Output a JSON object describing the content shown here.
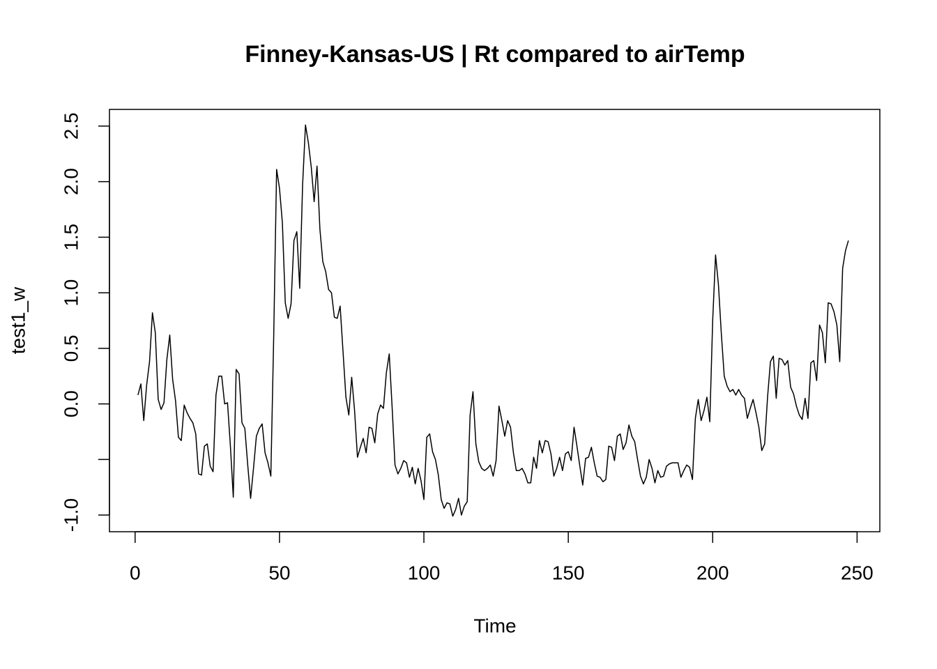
{
  "chart_data": {
    "type": "line",
    "title": "Finney-Kansas-US | Rt compared to airTemp",
    "x_label": "Time",
    "y_label": "test1_w",
    "xlim": [
      -8.88,
      257.88
    ],
    "ylim": [
      -1.15,
      2.65
    ],
    "xticks": [
      0,
      50,
      100,
      150,
      200,
      250
    ],
    "yticks": [
      {
        "value": -1.0,
        "label": "-1.0"
      },
      {
        "value": -0.5,
        "label": null
      },
      {
        "value": 0.0,
        "label": "0.0"
      },
      0.5,
      {
        "value": 1.0,
        "label": "1.0"
      },
      1.5,
      {
        "value": 2.0,
        "label": "2.0"
      },
      2.5
    ],
    "grid": false,
    "series": [
      {
        "name": "test1_w",
        "color": "#000000",
        "x": [
          1,
          2,
          3,
          4,
          5,
          6,
          7,
          8,
          9,
          10,
          11,
          12,
          13,
          14,
          15,
          16,
          17,
          18,
          19,
          20,
          21,
          22,
          23,
          24,
          25,
          26,
          27,
          28,
          29,
          30,
          31,
          32,
          33,
          34,
          35,
          36,
          37,
          38,
          39,
          40,
          41,
          42,
          43,
          44,
          45,
          46,
          47,
          48,
          49,
          50,
          51,
          52,
          53,
          54,
          55,
          56,
          57,
          58,
          59,
          60,
          61,
          62,
          63,
          64,
          65,
          66,
          67,
          68,
          69,
          70,
          71,
          72,
          73,
          74,
          75,
          76,
          77,
          78,
          79,
          80,
          81,
          82,
          83,
          84,
          85,
          86,
          87,
          88,
          89,
          90,
          91,
          92,
          93,
          94,
          95,
          96,
          97,
          98,
          99,
          100,
          101,
          102,
          103,
          104,
          105,
          106,
          107,
          108,
          109,
          110,
          111,
          112,
          113,
          114,
          115,
          116,
          117,
          118,
          119,
          120,
          121,
          122,
          123,
          124,
          125,
          126,
          127,
          128,
          129,
          130,
          131,
          132,
          133,
          134,
          135,
          136,
          137,
          138,
          139,
          140,
          141,
          142,
          143,
          144,
          145,
          146,
          147,
          148,
          149,
          150,
          151,
          152,
          153,
          154,
          155,
          156,
          157,
          158,
          159,
          160,
          161,
          162,
          163,
          164,
          165,
          166,
          167,
          168,
          169,
          170,
          171,
          172,
          173,
          174,
          175,
          176,
          177,
          178,
          179,
          180,
          181,
          182,
          183,
          184,
          185,
          186,
          187,
          188,
          189,
          190,
          191,
          192,
          193,
          194,
          195,
          196,
          197,
          198,
          199,
          200,
          201,
          202,
          203,
          204,
          205,
          206,
          207,
          208,
          209,
          210,
          211,
          212,
          213,
          214,
          215,
          216,
          217,
          218,
          219,
          220,
          221,
          222,
          223,
          224,
          225,
          226,
          227,
          228,
          229,
          230,
          231,
          232,
          233,
          234,
          235,
          236,
          237,
          238,
          239,
          240,
          241,
          242,
          243,
          244,
          245,
          246,
          247
        ],
        "values": [
          0.08,
          0.18,
          -0.15,
          0.17,
          0.38,
          0.82,
          0.64,
          0.04,
          -0.05,
          0.01,
          0.4,
          0.62,
          0.22,
          0.03,
          -0.3,
          -0.33,
          -0.01,
          -0.08,
          -0.13,
          -0.17,
          -0.27,
          -0.63,
          -0.64,
          -0.38,
          -0.36,
          -0.56,
          -0.61,
          0.08,
          0.25,
          0.25,
          0.0,
          0.01,
          -0.38,
          -0.84,
          0.31,
          0.27,
          -0.17,
          -0.22,
          -0.55,
          -0.85,
          -0.58,
          -0.29,
          -0.22,
          -0.18,
          -0.44,
          -0.53,
          -0.65,
          0.61,
          2.11,
          1.94,
          1.63,
          0.91,
          0.77,
          0.9,
          1.47,
          1.55,
          1.04,
          1.97,
          2.51,
          2.35,
          2.13,
          1.82,
          2.14,
          1.57,
          1.28,
          1.19,
          1.03,
          1.0,
          0.78,
          0.77,
          0.88,
          0.47,
          0.06,
          -0.1,
          0.24,
          -0.06,
          -0.48,
          -0.39,
          -0.31,
          -0.44,
          -0.21,
          -0.22,
          -0.35,
          -0.09,
          -0.01,
          -0.04,
          0.28,
          0.45,
          -0.03,
          -0.55,
          -0.63,
          -0.58,
          -0.51,
          -0.53,
          -0.66,
          -0.57,
          -0.72,
          -0.58,
          -0.69,
          -0.86,
          -0.3,
          -0.27,
          -0.43,
          -0.5,
          -0.64,
          -0.86,
          -0.94,
          -0.89,
          -0.9,
          -1.01,
          -0.95,
          -0.85,
          -1.0,
          -0.92,
          -0.88,
          -0.1,
          0.11,
          -0.36,
          -0.52,
          -0.58,
          -0.6,
          -0.58,
          -0.55,
          -0.65,
          -0.51,
          -0.02,
          -0.15,
          -0.29,
          -0.15,
          -0.21,
          -0.44,
          -0.6,
          -0.6,
          -0.58,
          -0.63,
          -0.71,
          -0.71,
          -0.48,
          -0.58,
          -0.33,
          -0.44,
          -0.33,
          -0.34,
          -0.45,
          -0.65,
          -0.58,
          -0.48,
          -0.6,
          -0.45,
          -0.43,
          -0.51,
          -0.21,
          -0.38,
          -0.56,
          -0.73,
          -0.49,
          -0.48,
          -0.39,
          -0.53,
          -0.65,
          -0.66,
          -0.7,
          -0.68,
          -0.38,
          -0.39,
          -0.51,
          -0.29,
          -0.27,
          -0.41,
          -0.35,
          -0.19,
          -0.29,
          -0.34,
          -0.5,
          -0.65,
          -0.72,
          -0.66,
          -0.5,
          -0.58,
          -0.71,
          -0.6,
          -0.66,
          -0.65,
          -0.56,
          -0.54,
          -0.53,
          -0.53,
          -0.53,
          -0.66,
          -0.6,
          -0.55,
          -0.57,
          -0.68,
          -0.13,
          0.04,
          -0.15,
          -0.06,
          0.06,
          -0.16,
          0.75,
          1.34,
          1.07,
          0.63,
          0.25,
          0.16,
          0.11,
          0.13,
          0.08,
          0.13,
          0.08,
          0.05,
          -0.13,
          -0.04,
          0.04,
          -0.08,
          -0.21,
          -0.42,
          -0.36,
          0.06,
          0.38,
          0.43,
          0.05,
          0.41,
          0.4,
          0.35,
          0.39,
          0.15,
          0.09,
          -0.02,
          -0.1,
          -0.14,
          0.05,
          -0.13,
          0.37,
          0.39,
          0.21,
          0.71,
          0.64,
          0.37,
          0.91,
          0.9,
          0.83,
          0.71,
          0.38,
          1.22,
          1.38,
          1.47
        ]
      }
    ]
  }
}
